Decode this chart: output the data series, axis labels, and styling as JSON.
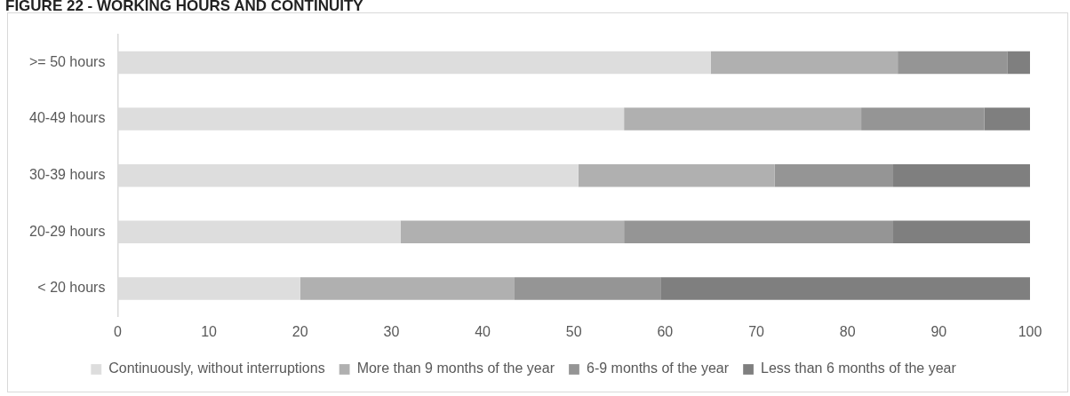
{
  "chart_data": {
    "type": "bar",
    "orientation": "horizontal",
    "stacked": true,
    "title": "FIGURE 22 - WORKING HOURS AND CONTINUITY",
    "categories": [
      ">= 50 hours",
      "40-49 hours",
      "30-39 hours",
      "20-29 hours",
      "< 20 hours"
    ],
    "series": [
      {
        "name": "Continuously, without interruptions",
        "color": "#dddddd",
        "values": [
          65,
          55.5,
          50.5,
          31,
          20
        ]
      },
      {
        "name": "More than 9 months of the year",
        "color": "#b0b0b0",
        "values": [
          20.5,
          26,
          21.5,
          24.5,
          23.5
        ]
      },
      {
        "name": "6-9 months of the year",
        "color": "#959595",
        "values": [
          12,
          13.5,
          13,
          29.5,
          16
        ]
      },
      {
        "name": "Less than 6 months of the year",
        "color": "#7f7f7f",
        "values": [
          2.5,
          5,
          15,
          15,
          40.5
        ]
      }
    ],
    "xlim": [
      0,
      100
    ],
    "xticks": [
      0,
      10,
      20,
      30,
      40,
      50,
      60,
      70,
      80,
      90,
      100
    ],
    "grid": false,
    "legend": "bottom"
  }
}
